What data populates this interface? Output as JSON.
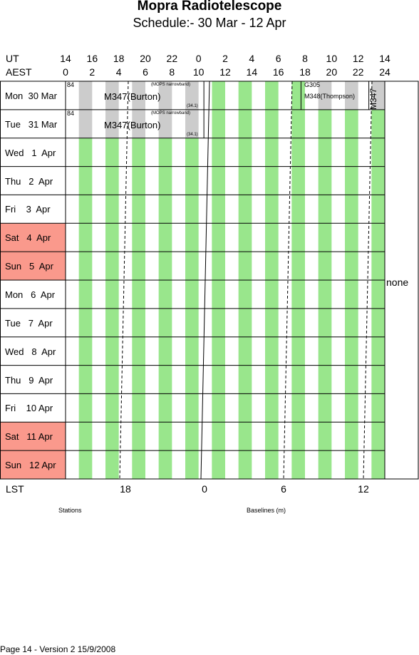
{
  "title": "Mopra Radiotelescope",
  "subtitle": "Schedule:- 30 Mar - 12 Apr",
  "header": {
    "ut_label": "UT",
    "aest_label": "AEST",
    "ut_ticks": [
      "14",
      "16",
      "18",
      "20",
      "22",
      "0",
      "2",
      "4",
      "6",
      "8",
      "10",
      "12",
      "14"
    ],
    "aest_ticks": [
      "0",
      "2",
      "4",
      "6",
      "8",
      "10",
      "12",
      "14",
      "16",
      "18",
      "20",
      "22",
      "24"
    ]
  },
  "days": [
    {
      "label": "Mon  30 Mar",
      "weekend": false
    },
    {
      "label": "Tue   31 Mar",
      "weekend": false
    },
    {
      "label": "Wed   1  Apr",
      "weekend": false
    },
    {
      "label": "Thu   2  Apr",
      "weekend": false
    },
    {
      "label": "Fri    3  Apr",
      "weekend": false
    },
    {
      "label": "Sat   4  Apr",
      "weekend": true
    },
    {
      "label": "Sun   5  Apr",
      "weekend": true
    },
    {
      "label": "Mon   6  Apr",
      "weekend": false
    },
    {
      "label": "Tue   7  Apr",
      "weekend": false
    },
    {
      "label": "Wed   8  Apr",
      "weekend": false
    },
    {
      "label": "Thu   9  Apr",
      "weekend": false
    },
    {
      "label": "Fri    10 Apr",
      "weekend": false
    },
    {
      "label": "Sat   11 Apr",
      "weekend": true
    },
    {
      "label": "Sun   12 Apr",
      "weekend": true
    }
  ],
  "bookings": {
    "row1": {
      "project": "M347(Burton)",
      "station": "84",
      "note": "(MOPS narrowband)",
      "config": "(34.1)",
      "project2_code": "G305",
      "project2": "M348(Thompson)",
      "project3": "M347"
    },
    "row2": {
      "project": "M347(Burton)",
      "station": "84",
      "note": "(MOPS narrowband)",
      "config": "(34.1)"
    }
  },
  "side_note": "none",
  "lst": {
    "label": "LST",
    "ticks": [
      "18",
      "0",
      "6",
      "12"
    ]
  },
  "footer": {
    "stations_label": "Stations",
    "baselines_label": "Baselines (m)",
    "page_info": "Page 14 - Version 2  15/9/2008"
  },
  "colors": {
    "green_band": "#99e68c",
    "gray_band": "#cccccc",
    "weekend": "#fa998c"
  }
}
